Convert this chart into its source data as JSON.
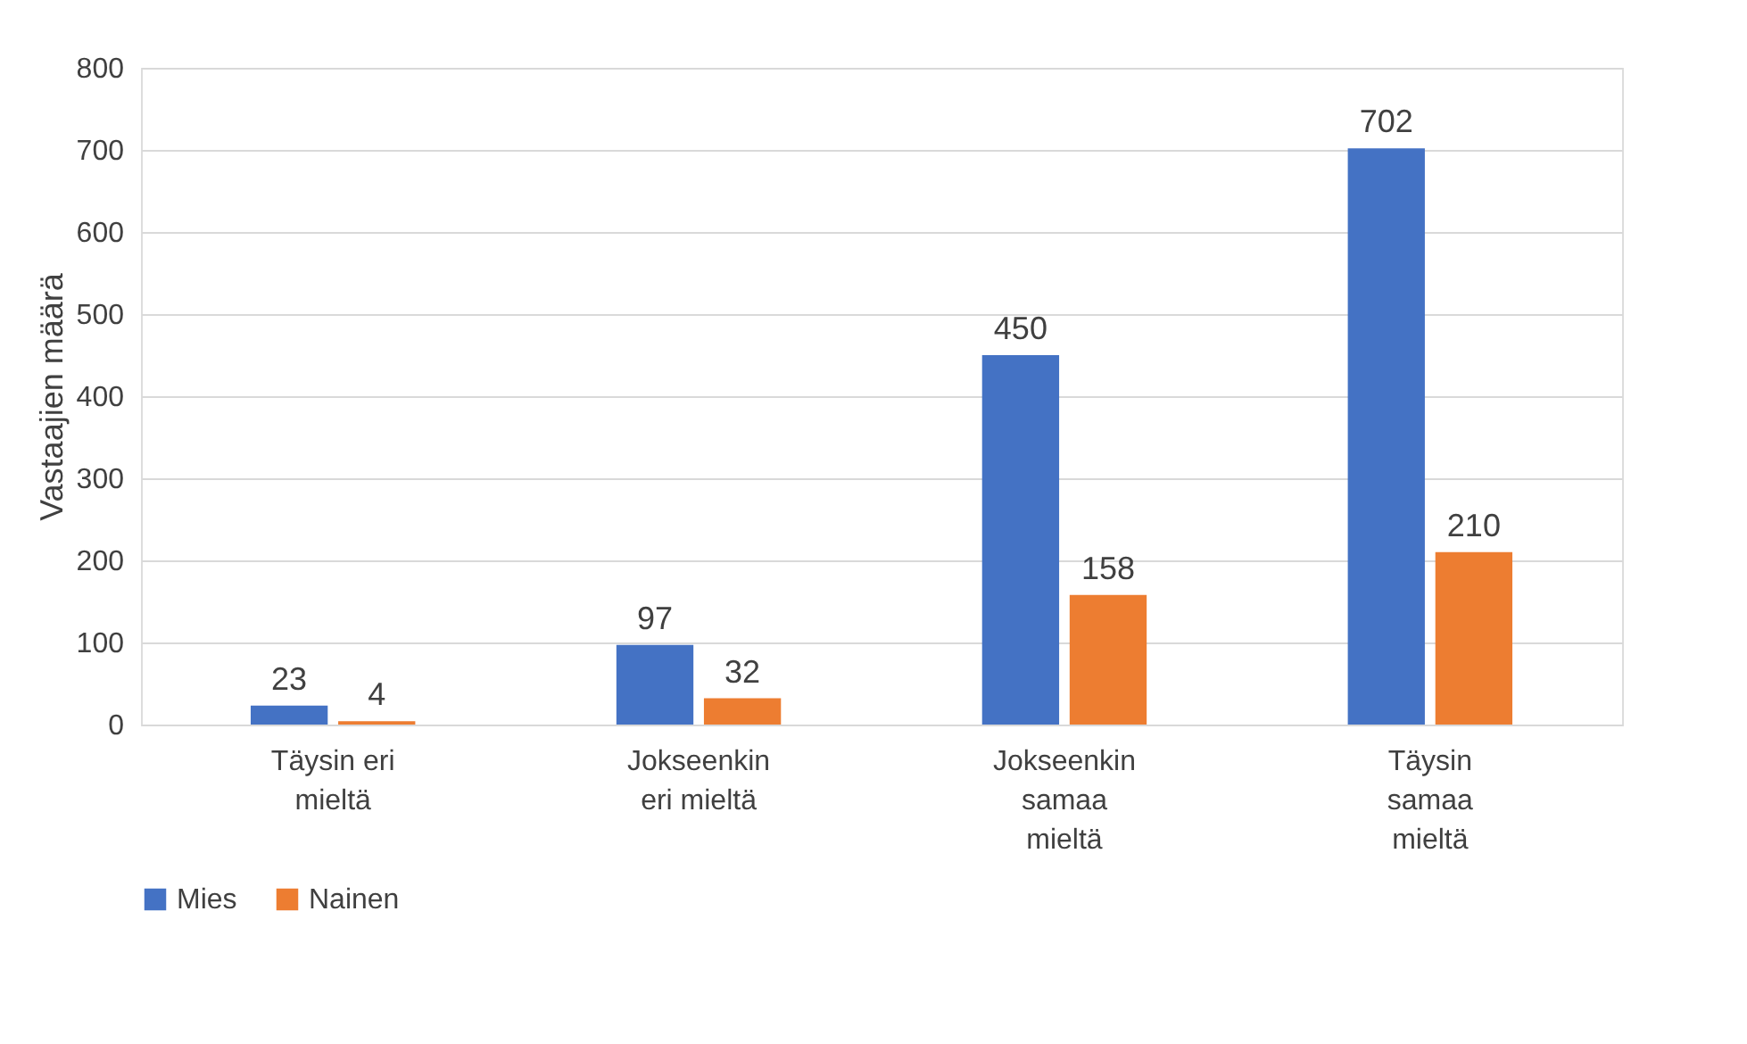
{
  "chart_data": {
    "type": "bar",
    "ylabel": "Vastaajien määrä",
    "categories": [
      "Täysin eri\nmieltä",
      "Jokseenkin\neri mieltä",
      "Jokseenkin\nsamaa\nmieltä",
      "Täysin\nsamaa\nmieltä"
    ],
    "series": [
      {
        "name": "Mies",
        "color": "#4472c4",
        "values": [
          23,
          97,
          450,
          702
        ]
      },
      {
        "name": "Nainen",
        "color": "#ed7d31",
        "values": [
          4,
          32,
          158,
          210
        ]
      }
    ],
    "ylim": [
      0,
      800
    ],
    "yticks": [
      0,
      100,
      200,
      300,
      400,
      500,
      600,
      700,
      800
    ],
    "grid": "y",
    "legend": "bottom",
    "data_labels": true
  }
}
